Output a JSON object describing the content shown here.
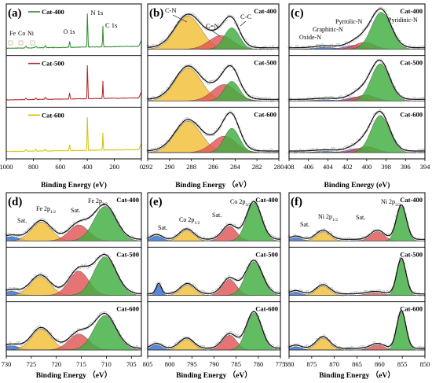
{
  "chart_data": [
    {
      "type": "line",
      "panel_label": "(a)",
      "xlabel": "Binding Energy (eV)",
      "x_ticks": [
        "1000",
        "800",
        "600",
        "400",
        "200",
        "0"
      ],
      "xlim": [
        1000,
        0
      ],
      "series": [
        {
          "name": "Cat-400",
          "color": "#2e8b2e"
        },
        {
          "name": "Cat-500",
          "color": "#b22222"
        },
        {
          "name": "Cat-600",
          "color": "#d4c200"
        }
      ],
      "annotations": [
        "Fe",
        "Co",
        "Ni",
        "O 1s",
        "N 1s",
        "C 1s"
      ],
      "peak_positions_ev": {
        "Fe": 711,
        "Co": 781,
        "Ni": 855,
        "O 1s": 531,
        "N 1s": 399,
        "C 1s": 285
      }
    },
    {
      "type": "area",
      "panel_label": "(b)",
      "xlabel": "Binding Energy （eV）",
      "x_ticks": [
        "292",
        "290",
        "288",
        "286",
        "284",
        "282",
        "280"
      ],
      "xlim": [
        292,
        280
      ],
      "annotations": [
        "C-N",
        "C=N",
        "C-C"
      ],
      "rows": [
        {
          "name": "Cat-400",
          "components": [
            {
              "label": "C-N",
              "center": 288.3,
              "height": 0.85,
              "width": 1.2,
              "color": "#f2c037"
            },
            {
              "label": "C=N",
              "center": 285.3,
              "height": 0.35,
              "width": 1.1,
              "color": "#e05555"
            },
            {
              "label": "C-C",
              "center": 284.3,
              "height": 0.55,
              "width": 0.7,
              "color": "#3fae3f"
            }
          ]
        },
        {
          "name": "Cat-500",
          "components": [
            {
              "label": "C-N",
              "center": 288.3,
              "height": 0.85,
              "width": 1.2,
              "color": "#f2c037"
            },
            {
              "label": "C=N",
              "center": 285.0,
              "height": 0.42,
              "width": 1.1,
              "color": "#e05555"
            },
            {
              "label": "C-C",
              "center": 284.3,
              "height": 0.5,
              "width": 0.7,
              "color": "#3fae3f"
            }
          ]
        },
        {
          "name": "Cat-600",
          "components": [
            {
              "label": "C-N",
              "center": 288.3,
              "height": 0.8,
              "width": 1.2,
              "color": "#f2c037"
            },
            {
              "label": "C=N",
              "center": 285.0,
              "height": 0.42,
              "width": 1.1,
              "color": "#e05555"
            },
            {
              "label": "C-C",
              "center": 284.3,
              "height": 0.62,
              "width": 0.7,
              "color": "#3fae3f"
            }
          ]
        }
      ]
    },
    {
      "type": "area",
      "panel_label": "(c)",
      "xlabel": "Binding Energy (eV)",
      "x_ticks": [
        "408",
        "406",
        "404",
        "402",
        "400",
        "398",
        "396",
        "394"
      ],
      "xlim": [
        408,
        394
      ],
      "annotations": [
        "Oxide-N",
        "Graphitic-N",
        "Pyrrolic-N",
        "Pyridinic-N"
      ],
      "rows": [
        {
          "name": "Cat-400",
          "components": [
            {
              "label": "Oxide-N",
              "center": 404.3,
              "height": 0.05,
              "width": 1.0,
              "color": "#2f6fd6"
            },
            {
              "label": "Graphitic-N",
              "center": 401.3,
              "height": 0.1,
              "width": 1.0,
              "color": "#9b59b6"
            },
            {
              "label": "Pyrrolic-N",
              "center": 400.2,
              "height": 0.18,
              "width": 1.0,
              "color": "#e05555"
            },
            {
              "label": "Pyridinic-N",
              "center": 398.5,
              "height": 0.95,
              "width": 1.0,
              "color": "#3fae3f"
            }
          ]
        },
        {
          "name": "Cat-500",
          "components": [
            {
              "label": "Oxide-N",
              "center": 404.3,
              "height": 0.03,
              "width": 1.0,
              "color": "#2f6fd6"
            },
            {
              "label": "Graphitic-N",
              "center": 401.0,
              "height": 0.1,
              "width": 1.0,
              "color": "#9b59b6"
            },
            {
              "label": "Pyrrolic-N",
              "center": 400.1,
              "height": 0.15,
              "width": 1.0,
              "color": "#e05555"
            },
            {
              "label": "Pyridinic-N",
              "center": 398.6,
              "height": 0.95,
              "width": 0.95,
              "color": "#3fae3f"
            }
          ]
        },
        {
          "name": "Cat-600",
          "components": [
            {
              "label": "Oxide-N",
              "center": 404.3,
              "height": 0.03,
              "width": 1.0,
              "color": "#2f6fd6"
            },
            {
              "label": "Graphitic-N",
              "center": 401.0,
              "height": 0.1,
              "width": 1.0,
              "color": "#9b59b6"
            },
            {
              "label": "Pyrrolic-N",
              "center": 400.0,
              "height": 0.15,
              "width": 1.0,
              "color": "#e05555"
            },
            {
              "label": "Pyridinic-N",
              "center": 398.6,
              "height": 0.95,
              "width": 0.95,
              "color": "#3fae3f"
            }
          ]
        }
      ]
    },
    {
      "type": "area",
      "panel_label": "(d)",
      "xlabel": "Binding Energy （eV）",
      "x_ticks": [
        "730",
        "725",
        "720",
        "715",
        "710",
        "705"
      ],
      "xlim": [
        730,
        703
      ],
      "annotations": [
        "Sat.",
        "Fe 2p1/2",
        "Sat.",
        "Fe 2p3/2"
      ],
      "rows": [
        {
          "name": "Cat-400",
          "components": [
            {
              "label": "Sat.",
              "center": 729.0,
              "height": 0.1,
              "width": 1.6,
              "color": "#2f6fd6"
            },
            {
              "label": "Fe 2p1/2",
              "center": 723.0,
              "height": 0.45,
              "width": 2.0,
              "color": "#f2c037"
            },
            {
              "label": "Sat.",
              "center": 715.5,
              "height": 0.38,
              "width": 2.0,
              "color": "#e05555"
            },
            {
              "label": "Fe 2p3/2",
              "center": 710.3,
              "height": 0.82,
              "width": 2.2,
              "color": "#3fae3f"
            }
          ]
        },
        {
          "name": "Cat-500",
          "components": [
            {
              "label": "Sat.",
              "center": 729.0,
              "height": 0.1,
              "width": 1.6,
              "color": "#2f6fd6"
            },
            {
              "label": "Fe 2p1/2",
              "center": 723.2,
              "height": 0.45,
              "width": 2.0,
              "color": "#f2c037"
            },
            {
              "label": "Sat.",
              "center": 715.5,
              "height": 0.58,
              "width": 2.0,
              "color": "#e05555"
            },
            {
              "label": "Fe 2p3/2",
              "center": 710.3,
              "height": 0.92,
              "width": 2.2,
              "color": "#3fae3f"
            }
          ]
        },
        {
          "name": "Cat-600",
          "components": [
            {
              "label": "Sat.",
              "center": 729.0,
              "height": 0.1,
              "width": 1.6,
              "color": "#2f6fd6"
            },
            {
              "label": "Fe 2p1/2",
              "center": 723.0,
              "height": 0.5,
              "width": 2.0,
              "color": "#f2c037"
            },
            {
              "label": "Sat.",
              "center": 715.5,
              "height": 0.38,
              "width": 2.0,
              "color": "#e05555"
            },
            {
              "label": "Fe 2p3/2",
              "center": 710.3,
              "height": 0.82,
              "width": 2.2,
              "color": "#3fae3f"
            }
          ]
        }
      ]
    },
    {
      "type": "area",
      "panel_label": "(e)",
      "xlabel": "Binding Energy （eV）",
      "x_ticks": [
        "805",
        "800",
        "795",
        "790",
        "785",
        "780",
        "775"
      ],
      "xlim": [
        805,
        775
      ],
      "annotations": [
        "Sat.",
        "Co 2p1/2",
        "Sat.",
        "Co 2p3/2"
      ],
      "rows": [
        {
          "name": "Cat-400",
          "components": [
            {
              "label": "Sat.",
              "center": 803.0,
              "height": 0.12,
              "width": 1.2,
              "color": "#2f6fd6"
            },
            {
              "label": "Co 2p1/2",
              "center": 796.2,
              "height": 0.25,
              "width": 1.6,
              "color": "#f2c037"
            },
            {
              "label": "Sat.",
              "center": 786.5,
              "height": 0.35,
              "width": 1.6,
              "color": "#e05555"
            },
            {
              "label": "Co 2p3/2",
              "center": 781.0,
              "height": 0.9,
              "width": 1.7,
              "color": "#3fae3f"
            }
          ]
        },
        {
          "name": "Cat-500",
          "components": [
            {
              "label": "Sat.",
              "center": 802.5,
              "height": 0.25,
              "width": 0.6,
              "color": "#2f6fd6"
            },
            {
              "label": "Co 2p1/2",
              "center": 796.0,
              "height": 0.25,
              "width": 1.6,
              "color": "#f2c037"
            },
            {
              "label": "Sat.",
              "center": 786.5,
              "height": 0.38,
              "width": 1.6,
              "color": "#e05555"
            },
            {
              "label": "Co 2p3/2",
              "center": 781.0,
              "height": 0.8,
              "width": 1.9,
              "color": "#3fae3f"
            }
          ]
        },
        {
          "name": "Cat-600",
          "components": [
            {
              "label": "Sat.",
              "center": 803.0,
              "height": 0.12,
              "width": 1.2,
              "color": "#2f6fd6"
            },
            {
              "label": "Co 2p1/2",
              "center": 796.2,
              "height": 0.25,
              "width": 1.6,
              "color": "#f2c037"
            },
            {
              "label": "Sat.",
              "center": 786.5,
              "height": 0.35,
              "width": 1.6,
              "color": "#e05555"
            },
            {
              "label": "Co 2p3/2",
              "center": 781.0,
              "height": 0.88,
              "width": 1.7,
              "color": "#3fae3f"
            }
          ]
        }
      ]
    },
    {
      "type": "area",
      "panel_label": "(f)",
      "xlabel": "Binding Energy （eV）",
      "x_ticks": [
        "880",
        "875",
        "870",
        "865",
        "860",
        "855",
        "850"
      ],
      "xlim": [
        880,
        850
      ],
      "annotations": [
        "Sat.",
        "Ni 2p1/2",
        "Sat.",
        "Ni 2p3/2"
      ],
      "rows": [
        {
          "name": "Cat-400",
          "components": [
            {
              "label": "Sat.",
              "center": 878.5,
              "height": 0.08,
              "width": 1.2,
              "color": "#2f6fd6"
            },
            {
              "label": "Ni 2p1/2",
              "center": 872.5,
              "height": 0.22,
              "width": 1.5,
              "color": "#f2c037"
            },
            {
              "label": "Sat.",
              "center": 860.5,
              "height": 0.22,
              "width": 1.5,
              "color": "#e05555"
            },
            {
              "label": "Ni 2p3/2",
              "center": 855.2,
              "height": 0.82,
              "width": 1.1,
              "color": "#3fae3f"
            }
          ]
        },
        {
          "name": "Cat-500",
          "components": [
            {
              "label": "Sat.",
              "center": 878.5,
              "height": 0.08,
              "width": 1.2,
              "color": "#2f6fd6"
            },
            {
              "label": "Ni 2p1/2",
              "center": 872.5,
              "height": 0.22,
              "width": 1.5,
              "color": "#f2c037"
            },
            {
              "label": "Sat.",
              "center": 861.0,
              "height": 0.06,
              "width": 1.8,
              "color": "#e05555"
            },
            {
              "label": "Ni 2p3/2",
              "center": 855.2,
              "height": 0.85,
              "width": 1.0,
              "color": "#3fae3f"
            }
          ]
        },
        {
          "name": "Cat-600",
          "components": [
            {
              "label": "Sat.",
              "center": 878.5,
              "height": 0.08,
              "width": 1.2,
              "color": "#2f6fd6"
            },
            {
              "label": "Ni 2p1/2",
              "center": 872.5,
              "height": 0.28,
              "width": 1.5,
              "color": "#f2c037"
            },
            {
              "label": "Sat.",
              "center": 860.5,
              "height": 0.12,
              "width": 1.5,
              "color": "#e05555"
            },
            {
              "label": "Ni 2p3/2",
              "center": 855.2,
              "height": 0.9,
              "width": 1.0,
              "color": "#3fae3f"
            }
          ]
        }
      ]
    }
  ]
}
